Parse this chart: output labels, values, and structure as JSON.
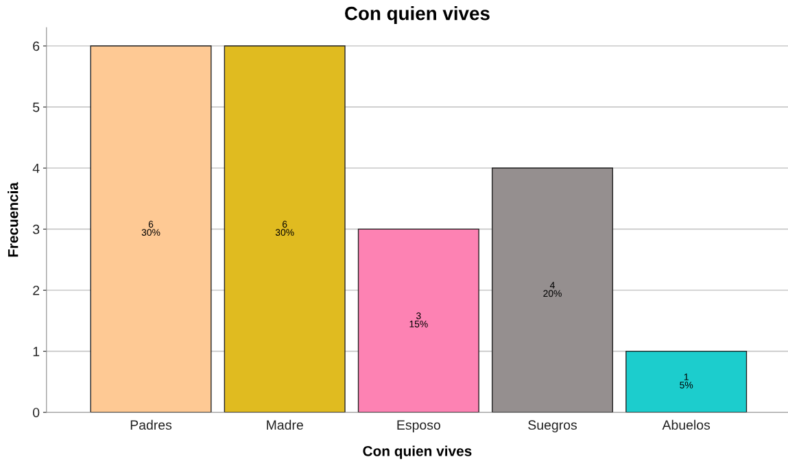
{
  "chart_data": {
    "type": "bar",
    "title": "Con quien vives",
    "xlabel": "Con quien vives",
    "ylabel": "Frecuencia",
    "categories": [
      "Padres",
      "Madre",
      "Esposo",
      "Suegros",
      "Abuelos"
    ],
    "values": [
      6,
      6,
      3,
      4,
      1
    ],
    "colors": [
      "#fec994",
      "#e0bb20",
      "#fd82b3",
      "#958f8f",
      "#1ccdcd"
    ],
    "value_labels": [
      "6\n30%",
      "6\n30%",
      "3\n15%",
      "4\n20%",
      "1\n5%"
    ],
    "ylim": [
      0,
      6.3
    ],
    "yticks": [
      0,
      1,
      2,
      3,
      4,
      5,
      6
    ],
    "grid": "y",
    "legend": false
  }
}
